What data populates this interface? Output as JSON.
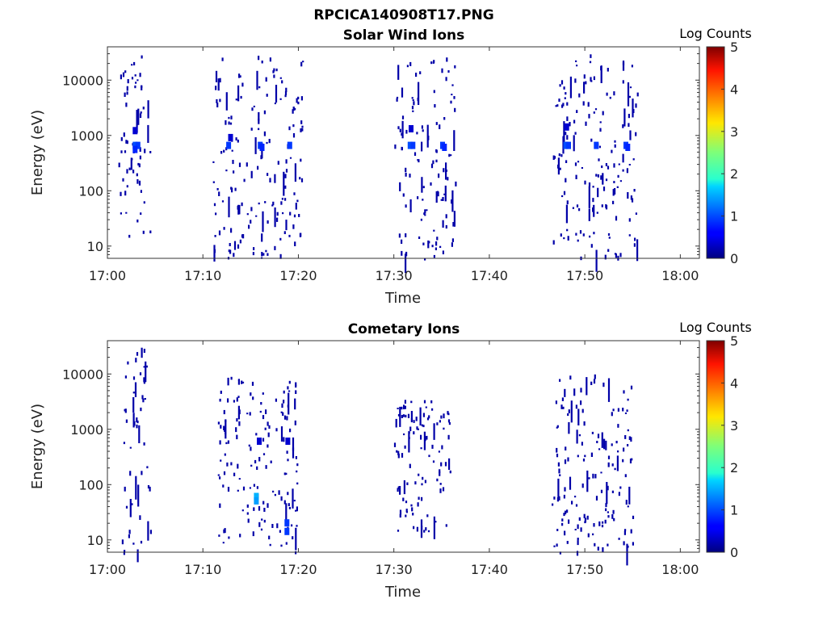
{
  "figure_title": "RPCICA140908T17.PNG",
  "colorbar_label": "Log Counts",
  "colorbar_ticks": [
    "0",
    "1",
    "2",
    "3",
    "4",
    "5"
  ],
  "chart_data": [
    {
      "type": "heatmap",
      "title": "Solar Wind Ions",
      "xlabel": "Time",
      "ylabel": "Energy (eV)",
      "xticks": [
        "17:00",
        "17:10",
        "17:20",
        "17:30",
        "17:40",
        "17:50",
        "18:00"
      ],
      "yticks": [
        "10",
        "100",
        "1000",
        "10000"
      ],
      "xlim_minutes": [
        0,
        62
      ],
      "ylim_ev": [
        6,
        40000
      ],
      "yscale": "log",
      "clim": [
        0,
        5
      ],
      "colormap": "jet",
      "cells": [
        {
          "t": 2.9,
          "e": 650,
          "v": 1.0
        },
        {
          "t": 3.2,
          "e": 650,
          "v": 0.9
        },
        {
          "t": 2.9,
          "e": 550,
          "v": 0.8
        },
        {
          "t": 12.7,
          "e": 650,
          "v": 0.9
        },
        {
          "t": 16.0,
          "e": 650,
          "v": 0.9
        },
        {
          "t": 16.2,
          "e": 600,
          "v": 0.8
        },
        {
          "t": 19.1,
          "e": 650,
          "v": 0.9
        },
        {
          "t": 31.7,
          "e": 650,
          "v": 1.0
        },
        {
          "t": 32.0,
          "e": 650,
          "v": 0.9
        },
        {
          "t": 35.1,
          "e": 650,
          "v": 0.9
        },
        {
          "t": 35.3,
          "e": 600,
          "v": 0.8
        },
        {
          "t": 48.0,
          "e": 650,
          "v": 1.0
        },
        {
          "t": 48.3,
          "e": 650,
          "v": 0.9
        },
        {
          "t": 51.2,
          "e": 650,
          "v": 0.9
        },
        {
          "t": 54.3,
          "e": 650,
          "v": 0.9
        },
        {
          "t": 54.5,
          "e": 600,
          "v": 0.8
        },
        {
          "t": 2.9,
          "e": 1200,
          "v": 0.4
        },
        {
          "t": 12.9,
          "e": 900,
          "v": 0.4
        },
        {
          "t": 48.1,
          "e": 1400,
          "v": 0.4
        },
        {
          "t": 31.8,
          "e": 1300,
          "v": 0.4
        }
      ],
      "scatter_counts": [
        {
          "t_start": 1.0,
          "t_end": 4.5,
          "e_min": 15,
          "e_max": 30000,
          "v": 0.2
        },
        {
          "t_start": 11.0,
          "t_end": 20.5,
          "e_min": 6,
          "e_max": 30000,
          "v": 0.2
        },
        {
          "t_start": 30.0,
          "t_end": 36.5,
          "e_min": 6,
          "e_max": 30000,
          "v": 0.2
        },
        {
          "t_start": 46.5,
          "t_end": 55.5,
          "e_min": 6,
          "e_max": 30000,
          "v": 0.2
        }
      ]
    },
    {
      "type": "heatmap",
      "title": "Cometary Ions",
      "xlabel": "Time",
      "ylabel": "Energy (eV)",
      "xticks": [
        "17:00",
        "17:10",
        "17:20",
        "17:30",
        "17:40",
        "17:50",
        "18:00"
      ],
      "yticks": [
        "10",
        "100",
        "1000",
        "10000"
      ],
      "xlim_minutes": [
        0,
        62
      ],
      "ylim_ev": [
        6,
        40000
      ],
      "yscale": "log",
      "clim": [
        0,
        5
      ],
      "colormap": "jet",
      "cells": [
        {
          "t": 15.6,
          "e": 60,
          "v": 1.5
        },
        {
          "t": 15.6,
          "e": 50,
          "v": 1.4
        },
        {
          "t": 18.8,
          "e": 20,
          "v": 0.9
        },
        {
          "t": 18.8,
          "e": 14,
          "v": 0.9
        },
        {
          "t": 15.9,
          "e": 600,
          "v": 0.4
        },
        {
          "t": 18.9,
          "e": 600,
          "v": 0.4
        }
      ],
      "scatter_counts": [
        {
          "t_start": 1.5,
          "t_end": 4.5,
          "e_min": 6,
          "e_max": 30000,
          "v": 0.2
        },
        {
          "t_start": 11.5,
          "t_end": 20.0,
          "e_min": 6,
          "e_max": 10000,
          "v": 0.2
        },
        {
          "t_start": 30.0,
          "t_end": 36.0,
          "e_min": 14,
          "e_max": 3500,
          "v": 0.2
        },
        {
          "t_start": 46.5,
          "t_end": 55.0,
          "e_min": 6,
          "e_max": 10000,
          "v": 0.2
        }
      ]
    }
  ]
}
